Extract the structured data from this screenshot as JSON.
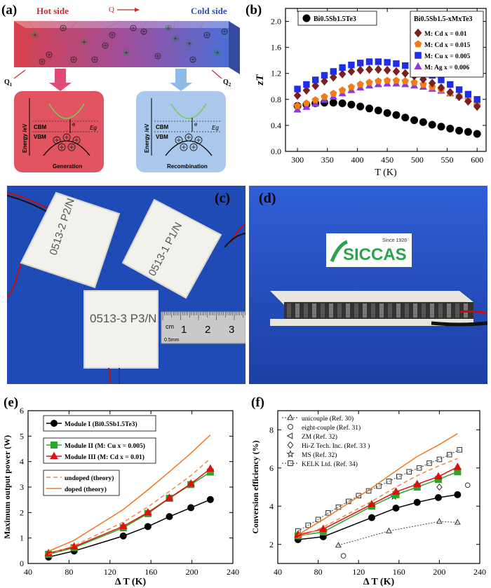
{
  "panel_a": {
    "letter": "(a)",
    "hot_side": "Hot side",
    "cold_side": "Cold side",
    "q": "Q",
    "q1": "Q",
    "q1_sub": "1",
    "q2": "Q",
    "q2_sub": "2",
    "gen": {
      "energy_label": "Energy /eV",
      "cbm": "CBM",
      "vbm": "VBM",
      "eg": "Eg",
      "electron": "e",
      "caption": "Generation"
    },
    "rec": {
      "energy_label": "Energy /eV",
      "cbm": "CBM",
      "vbm": "VBM",
      "eg": "Eg",
      "electron": "e",
      "caption": "Recombination"
    },
    "colors": {
      "hot": "#d9404a",
      "cold": "#4a6fd6",
      "gen_box": "#e2545f",
      "rec_box": "#a9c8ec"
    }
  },
  "panel_c": {
    "letter": "(c)",
    "module_labels": [
      "0513-2 P2/N",
      "0513-1 P1/N",
      "0513-3 P3/N"
    ],
    "ruler": [
      "cm",
      "1",
      "2",
      "3"
    ],
    "ruler_mm": "0.5mm"
  },
  "panel_d": {
    "letter": "(d)",
    "logo": "SICCAS",
    "since": "Since 1928"
  },
  "chart_data": [
    {
      "panel": "(b)",
      "type": "scatter",
      "xlabel": "T (K)",
      "ylabel": "zT",
      "xlim": [
        280,
        615
      ],
      "ylim": [
        0.0,
        2.2
      ],
      "xticks": [
        300,
        350,
        400,
        450,
        500,
        550,
        600
      ],
      "yticks": [
        0.0,
        0.4,
        0.8,
        1.2,
        1.6,
        2.0
      ],
      "legend_base": "Bi0.5Sb1.5Te3",
      "legend_doped_title": "Bi0.5Sb1.5-xMxTe3",
      "x": [
        300,
        315,
        330,
        345,
        360,
        375,
        390,
        405,
        420,
        435,
        450,
        465,
        480,
        495,
        510,
        525,
        540,
        555,
        570,
        585,
        600
      ],
      "series": [
        {
          "name": "Bi0.5Sb1.5Te3",
          "marker": "circle",
          "color": "#000000",
          "values": [
            0.7,
            0.72,
            0.74,
            0.75,
            0.75,
            0.74,
            0.72,
            0.69,
            0.66,
            0.63,
            0.59,
            0.56,
            0.52,
            0.48,
            0.45,
            0.41,
            0.38,
            0.35,
            0.32,
            0.3,
            0.27
          ]
        },
        {
          "name": "M: Cd  x = 0.01",
          "marker": "diamond",
          "color": "#7b1f1f",
          "values": [
            0.86,
            0.94,
            1.01,
            1.08,
            1.14,
            1.19,
            1.23,
            1.25,
            1.26,
            1.26,
            1.25,
            1.23,
            1.2,
            1.16,
            1.11,
            1.05,
            0.98,
            0.91,
            0.84,
            0.77,
            0.69
          ]
        },
        {
          "name": "M: Cd  x = 0.015",
          "marker": "pentagon",
          "color": "#f07d18",
          "values": [
            0.7,
            0.74,
            0.79,
            0.84,
            0.89,
            0.94,
            0.99,
            1.03,
            1.06,
            1.08,
            1.09,
            1.09,
            1.08,
            1.06,
            1.03,
            0.99,
            0.95,
            0.9,
            0.85,
            0.8,
            0.74
          ]
        },
        {
          "name": "M: Cu  x = 0.005",
          "marker": "square",
          "color": "#1f2fe6",
          "values": [
            0.96,
            1.03,
            1.1,
            1.17,
            1.23,
            1.29,
            1.33,
            1.36,
            1.38,
            1.38,
            1.37,
            1.35,
            1.32,
            1.28,
            1.23,
            1.17,
            1.1,
            1.03,
            0.95,
            0.88,
            0.8
          ]
        },
        {
          "name": "M: Ag  x = 0.006",
          "marker": "triangle",
          "color": "#8a3ae0",
          "values": [
            0.64,
            0.68,
            0.73,
            0.79,
            0.84,
            0.89,
            0.94,
            0.98,
            1.01,
            1.03,
            1.04,
            1.04,
            1.03,
            1.01,
            0.99,
            0.96,
            0.93,
            0.89,
            0.85,
            0.8,
            0.75
          ]
        }
      ]
    },
    {
      "panel": "(e)",
      "type": "line",
      "xlabel": "Δ T (K)",
      "ylabel": "Maximum output power (W)",
      "xlim": [
        40,
        240
      ],
      "ylim": [
        0,
        6
      ],
      "xticks": [
        40,
        80,
        120,
        160,
        200,
        240
      ],
      "yticks": [
        0,
        1,
        2,
        3,
        4,
        5,
        6
      ],
      "series": [
        {
          "name": "Module I (Bi0.5Sb1.5Te3)",
          "marker": "circle",
          "color": "#000000",
          "dash": "",
          "x": [
            60,
            85,
            133,
            157,
            178,
            199,
            218
          ],
          "values": [
            0.25,
            0.49,
            1.08,
            1.45,
            1.84,
            2.19,
            2.51
          ]
        },
        {
          "name": "Module II (M: Cu  x = 0.005)",
          "marker": "square",
          "color": "#2aa62a",
          "dash": "",
          "x": [
            60,
            85,
            133,
            157,
            178,
            199,
            218
          ],
          "values": [
            0.36,
            0.62,
            1.4,
            1.96,
            2.56,
            3.1,
            3.59
          ]
        },
        {
          "name": "Module III (M: Cd  x = 0.01)",
          "marker": "triangle",
          "color": "#e01010",
          "dash": "",
          "x": [
            60,
            85,
            133,
            157,
            178,
            199,
            218
          ],
          "values": [
            0.4,
            0.66,
            1.46,
            2.0,
            2.57,
            3.13,
            3.72
          ]
        },
        {
          "name": "undoped (theory)",
          "marker": "none",
          "color": "#f08a3a",
          "dash": "6,4",
          "x": [
            60,
            85,
            133,
            157,
            178,
            199,
            218
          ],
          "values": [
            0.36,
            0.7,
            1.62,
            2.22,
            2.83,
            3.45,
            4.12
          ]
        },
        {
          "name": "doped (theory)",
          "marker": "none",
          "color": "#f07820",
          "dash": "",
          "x": [
            60,
            85,
            133,
            157,
            178,
            199,
            218
          ],
          "values": [
            0.48,
            0.91,
            2.12,
            2.89,
            3.6,
            4.33,
            5.05
          ]
        }
      ]
    },
    {
      "panel": "(f)",
      "type": "line",
      "xlabel": "Δ T (K)",
      "ylabel": "Conversion efficiency (%)",
      "xlim": [
        40,
        240
      ],
      "ylim": [
        1.0,
        9.0
      ],
      "xticks": [
        40,
        80,
        120,
        160,
        200,
        240
      ],
      "yticks": [
        2,
        4,
        6,
        8
      ],
      "series": [
        {
          "name": "unicouple (Ref. 30)",
          "marker": "open-triangle-up",
          "color": "#333333",
          "dash": "2,2",
          "x": [
            100,
            150,
            200,
            218
          ],
          "values": [
            1.95,
            2.7,
            3.2,
            3.15
          ]
        },
        {
          "name": "eight-couple (Ref. 31)",
          "marker": "open-circle",
          "color": "#333333",
          "dash": "",
          "x": [
            105,
            228
          ],
          "values": [
            1.4,
            5.1
          ]
        },
        {
          "name": "ZM (Ref. 32)",
          "marker": "open-triangle-left",
          "color": "#333333",
          "dash": "",
          "x": [],
          "values": []
        },
        {
          "name": "Hi-Z Tech. Inc. (Ref. 33 )",
          "marker": "open-diamond",
          "color": "#333333",
          "dash": "",
          "x": [
            200
          ],
          "values": [
            5.0
          ]
        },
        {
          "name": "MS (Ref. 32)",
          "marker": "open-star",
          "color": "#333333",
          "dash": "",
          "x": [
            155
          ],
          "values": [
            4.5
          ]
        },
        {
          "name": "KELK Ltd. (Ref. 34)",
          "marker": "open-square",
          "color": "#333333",
          "dash": "2,2",
          "x": [
            60,
            70,
            80,
            90,
            100,
            110,
            120,
            130,
            140,
            150,
            160,
            170,
            180,
            190,
            200,
            210,
            220
          ],
          "values": [
            2.7,
            3.0,
            3.3,
            3.65,
            3.95,
            4.25,
            4.55,
            4.8,
            5.05,
            5.3,
            5.55,
            5.8,
            6.0,
            6.25,
            6.45,
            6.7,
            6.95
          ]
        },
        {
          "name": "Module I",
          "marker": "circle",
          "color": "#000000",
          "dash": "",
          "x": [
            60,
            85,
            133,
            157,
            178,
            199,
            218
          ],
          "values": [
            2.25,
            2.4,
            3.4,
            3.9,
            4.2,
            4.45,
            4.6
          ]
        },
        {
          "name": "Module II",
          "marker": "square",
          "color": "#2aa62a",
          "dash": "",
          "x": [
            60,
            85,
            133,
            157,
            178,
            199,
            218
          ],
          "values": [
            2.45,
            2.65,
            4.0,
            4.6,
            5.0,
            5.4,
            5.8
          ]
        },
        {
          "name": "Module III",
          "marker": "triangle",
          "color": "#e01010",
          "dash": "",
          "x": [
            60,
            85,
            133,
            157,
            178,
            199,
            218
          ],
          "values": [
            2.5,
            2.8,
            4.1,
            4.75,
            5.15,
            5.55,
            6.05
          ]
        },
        {
          "name": "undoped (theory)",
          "marker": "none",
          "color": "#f08a3a",
          "dash": "6,4",
          "x": [
            60,
            85,
            133,
            157,
            178,
            199,
            218
          ],
          "values": [
            2.35,
            2.9,
            4.25,
            5.0,
            5.6,
            6.1,
            6.5
          ]
        },
        {
          "name": "doped (theory)",
          "marker": "none",
          "color": "#f07820",
          "dash": "",
          "x": [
            60,
            85,
            133,
            157,
            178,
            199,
            218
          ],
          "values": [
            2.5,
            3.3,
            4.95,
            5.85,
            6.6,
            7.2,
            7.8
          ]
        }
      ]
    }
  ]
}
